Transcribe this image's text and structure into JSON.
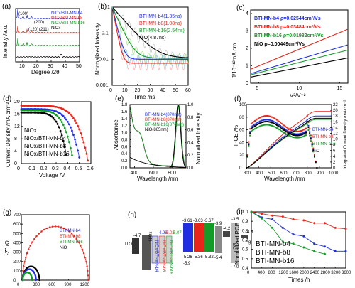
{
  "colors": {
    "black": "#000000",
    "red": "#e8251b",
    "blue": "#1f2ee0",
    "green": "#139a27",
    "lightblue": "#6fc8f0",
    "lightgreen": "#9be07a",
    "lightred": "#f7a1a1"
  },
  "chart_data": [
    {
      "panel": "(a)",
      "type": "line",
      "xlabel": "Degree /2θ",
      "ylabel": "Intensity /a.u.",
      "xlim": [
        5,
        50
      ],
      "xticks": [
        10,
        20,
        30,
        40,
        50
      ],
      "legend": [
        "NiOx/BTI-MN-b4",
        "NiOx/BTI-MN-b8",
        "NiOx/BTI-MN-b16",
        "NiOx"
      ],
      "annotations": [
        "(100)",
        "(120)",
        "(200)",
        "(211)"
      ],
      "peaks": [
        {
          "x": 6.5,
          "label": "(100)"
        },
        {
          "x": 10.3,
          "label": "(120)"
        },
        {
          "x": 13.0,
          "label": "(200)"
        },
        {
          "x": 16.2,
          "label": "(211)"
        }
      ]
    },
    {
      "panel": "(b)",
      "type": "line",
      "xlabel": "Time /ns",
      "ylabel": "Normalized Intensity",
      "xlim": [
        0,
        60
      ],
      "ylim_log": [
        0.001,
        1
      ],
      "xticks": [
        0,
        10,
        20,
        30,
        40,
        50,
        60
      ],
      "yticks": [
        "0.001",
        "0.01",
        "0.1",
        "1"
      ],
      "series": [
        {
          "name": "BTI-MN-b4(1.35ns)",
          "tau": 1.35,
          "plateau": 0.01
        },
        {
          "name": "BTI-MN-b8(1.08ns)",
          "tau": 1.08,
          "plateau": 0.007
        },
        {
          "name": "BTI-MN-b16(2.54ns)",
          "tau": 2.54,
          "plateau": 0.011
        },
        {
          "name": "NiO(4.87ns)",
          "tau": 4.87,
          "plateau": 0.011
        }
      ]
    },
    {
      "panel": "(c)",
      "type": "line",
      "xlabel": "V²/V⁻²",
      "ylabel": "J/10⁻¹²mA cm",
      "xlim": [
        4,
        16
      ],
      "ylim": [
        0,
        4.2
      ],
      "xticks": [
        5,
        10,
        15
      ],
      "yticks": [
        0,
        1,
        2,
        3,
        4
      ],
      "series": [
        {
          "name": "BTI-MN-b4 ρ=0.02544cm²/Vs",
          "x": [
            4,
            16
          ],
          "y": [
            0.55,
            2.2
          ]
        },
        {
          "name": "BTI-MN-b8 ρ=0.03484cm²/Vs",
          "x": [
            4,
            16
          ],
          "y": [
            0.8,
            3.1
          ]
        },
        {
          "name": "BTI-MN-b16 ρ=0.01982cm²/Vs",
          "x": [
            4,
            16
          ],
          "y": [
            0.48,
            1.9
          ]
        },
        {
          "name": "NiO ρ=0.00449cm²/Vs",
          "x": [
            4,
            16
          ],
          "y": [
            0.35,
            1.45
          ]
        }
      ]
    },
    {
      "panel": "(d)",
      "type": "line",
      "xlabel": "Voltage /V",
      "ylabel": "Current Density /mA cm⁻²",
      "xlim": [
        0,
        0.6
      ],
      "ylim": [
        0,
        20
      ],
      "xticks": [
        0,
        0.1,
        0.2,
        0.3,
        0.4,
        0.5,
        0.6
      ],
      "yticks": [
        0,
        4,
        8,
        12,
        16,
        20
      ],
      "series": [
        {
          "name": "NiOx",
          "jsc": 16.5,
          "voc": 0.4
        },
        {
          "name": "NiOx/BTI-MN-b4",
          "jsc": 17.6,
          "voc": 0.51
        },
        {
          "name": "NiOx/BTI-MN-b8",
          "jsc": 18.7,
          "voc": 0.58
        },
        {
          "name": "NiOx/BTI-MN-b16",
          "jsc": 17.2,
          "voc": 0.45
        }
      ]
    },
    {
      "panel": "(e)",
      "type": "line",
      "xlabel": "Wavelength /nm",
      "ylabel": "Absorbance",
      "y2label": "Normalized Intensity",
      "xlim": [
        350,
        950
      ],
      "ylim": [
        0,
        1.8
      ],
      "y2lim": [
        0,
        1.0
      ],
      "xticks": [
        400,
        600,
        800
      ],
      "yticks": [
        0,
        0.2,
        0.4,
        0.6,
        0.8,
        1.0,
        1.2,
        1.4,
        1.6,
        1.8
      ],
      "y2ticks": [
        0,
        0.2,
        0.4,
        0.6,
        0.8,
        1.0
      ],
      "legend": [
        "BTI-MN-b4(870nm)",
        "BTI-MN-b8(870nm)",
        "BTI-MN-b16(870nm)",
        "NiO(865nm)"
      ]
    },
    {
      "panel": "(f)",
      "type": "line",
      "xlabel": "Wavelength /nm",
      "ylabel": "IPCE /%",
      "y2label": "Integrated Current Density /mA cm⁻²",
      "xlim": [
        300,
        1000
      ],
      "ylim": [
        0,
        100
      ],
      "y2lim": [
        0,
        22
      ],
      "xticks": [
        300,
        400,
        500,
        600,
        700,
        800,
        900,
        1000
      ],
      "yticks": [
        0,
        20,
        40,
        60,
        80,
        100
      ],
      "y2ticks": [
        0,
        2,
        4,
        6,
        8,
        10,
        12,
        14,
        16,
        18,
        20,
        22
      ],
      "legend": [
        "BTI-MN-b4",
        "BTI-MN-b8",
        "BTI-MN-b16",
        "NiO"
      ]
    },
    {
      "panel": "(g)",
      "type": "scatter",
      "xlabel": "Z' /Ω",
      "ylabel": "-Z\" /Ω",
      "xlim": [
        0,
        1300
      ],
      "ylim": [
        0,
        700
      ],
      "xticks": [
        0,
        300,
        600,
        900,
        1200
      ],
      "yticks": [
        0,
        100,
        200,
        300,
        400,
        500,
        600,
        700
      ],
      "series": [
        {
          "name": "BTI-MN-b4",
          "r": 255
        },
        {
          "name": "BTI-MN-b8",
          "r": 1250
        },
        {
          "name": "BTI-MN-b16",
          "r": 180
        },
        {
          "name": "NiO",
          "r": 320
        }
      ]
    },
    {
      "panel": "(h)",
      "type": "diagram",
      "levels": [
        "-4.7",
        "ITO",
        "-4.98",
        "NiOx",
        "-5.02",
        "-5.07",
        "-3.61",
        "-3.63",
        "-3.67",
        "-5.26",
        "-5.36",
        "-5.32",
        "-3.9",
        "-5.4",
        "-4.2",
        "-3.5",
        "-7.0",
        "-4.6",
        "Ag",
        "-5.9",
        "BCP",
        "NiOx/BTI-MN-b4",
        "NiOx/BTI-MN-b8",
        "NiOx/BTI-MN-b16"
      ]
    },
    {
      "panel": "(i)",
      "type": "line",
      "xlabel": "Times /h",
      "ylabel": "Normalized PCE",
      "xlim": [
        0,
        3600
      ],
      "ylim": [
        0.4,
        1.0
      ],
      "xticks": [
        0,
        400,
        800,
        1200,
        1600,
        2000,
        2400,
        2800,
        3200,
        3600
      ],
      "yticks": [
        0.4,
        0.5,
        0.6,
        0.7,
        0.8,
        0.9,
        1.0
      ],
      "series": [
        {
          "name": "BTI-MN-b4",
          "x": [
            0,
            400,
            800,
            1200,
            1600,
            2000,
            2400,
            2800,
            3200,
            3600
          ],
          "y": [
            1.0,
            0.94,
            0.92,
            0.83,
            0.76,
            0.74,
            0.66,
            0.63,
            0.58,
            0.58
          ]
        },
        {
          "name": "BTI-MN-b8",
          "x": [
            0,
            400,
            800,
            1200,
            1600,
            2000,
            2400,
            2800,
            3200,
            3600
          ],
          "y": [
            1.0,
            0.98,
            0.96,
            0.95,
            0.92,
            0.91,
            0.88,
            0.88,
            0.83,
            0.82
          ]
        },
        {
          "name": "BTI-MN-b16",
          "x": [
            0,
            400,
            800,
            1200,
            1600,
            2000,
            2400,
            2800
          ],
          "y": [
            1.0,
            0.93,
            0.83,
            0.68,
            0.66,
            0.62,
            0.58,
            0.55
          ]
        }
      ]
    }
  ]
}
